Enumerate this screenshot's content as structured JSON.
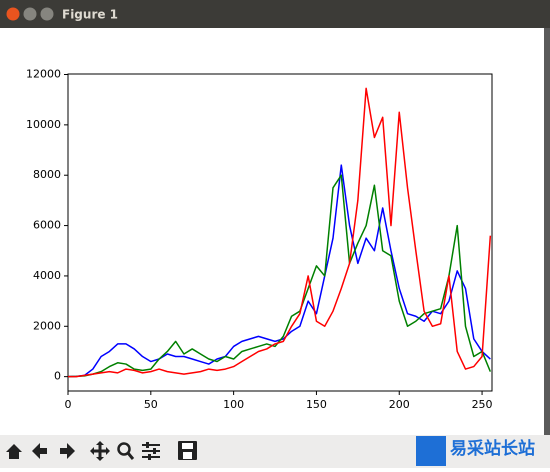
{
  "window": {
    "title": "Figure 1"
  },
  "chart_data": {
    "type": "line",
    "x": [
      0,
      5,
      10,
      15,
      20,
      25,
      30,
      35,
      40,
      45,
      50,
      55,
      60,
      65,
      70,
      75,
      80,
      85,
      90,
      95,
      100,
      105,
      110,
      115,
      120,
      125,
      130,
      135,
      140,
      145,
      150,
      155,
      160,
      165,
      170,
      175,
      180,
      185,
      190,
      195,
      200,
      205,
      210,
      215,
      220,
      225,
      230,
      235,
      240,
      245,
      250,
      255
    ],
    "series": [
      {
        "name": "b",
        "color": "#0000ff",
        "values": [
          0,
          10,
          50,
          300,
          800,
          1000,
          1300,
          1300,
          1100,
          800,
          600,
          700,
          900,
          800,
          800,
          700,
          600,
          500,
          700,
          800,
          1200,
          1400,
          1500,
          1600,
          1500,
          1400,
          1500,
          1800,
          2000,
          3000,
          2500,
          4000,
          5500,
          8400,
          6000,
          4500,
          5500,
          5000,
          6700,
          5000,
          3500,
          2500,
          2400,
          2200,
          2600,
          2500,
          3000,
          4200,
          3500,
          1500,
          1000,
          700
        ]
      },
      {
        "name": "g",
        "color": "#008000",
        "values": [
          0,
          10,
          30,
          100,
          200,
          400,
          550,
          500,
          300,
          250,
          300,
          700,
          1000,
          1400,
          900,
          1100,
          900,
          700,
          600,
          800,
          700,
          1000,
          1100,
          1200,
          1300,
          1200,
          1600,
          2400,
          2600,
          3500,
          4400,
          4000,
          7500,
          8000,
          4500,
          5300,
          6000,
          7600,
          5000,
          4800,
          3000,
          2000,
          2200,
          2500,
          2600,
          2700,
          4000,
          6000,
          2000,
          800,
          1000,
          200
        ]
      },
      {
        "name": "r",
        "color": "#ff0000",
        "values": [
          0,
          0,
          50,
          100,
          150,
          200,
          150,
          300,
          250,
          150,
          200,
          300,
          200,
          150,
          100,
          150,
          200,
          300,
          250,
          300,
          400,
          600,
          800,
          1000,
          1100,
          1300,
          1400,
          2000,
          2500,
          4000,
          2200,
          2000,
          2600,
          3500,
          4500,
          7000,
          11450,
          9500,
          10300,
          6000,
          10500,
          7500,
          5000,
          2600,
          2000,
          2100,
          4000,
          1000,
          300,
          400,
          800,
          5600
        ]
      }
    ],
    "xlim": [
      0,
      256
    ],
    "ylim": [
      -570,
      12020
    ],
    "xticks": [
      0,
      50,
      100,
      150,
      200,
      250
    ],
    "yticks": [
      0,
      2000,
      4000,
      6000,
      8000,
      10000,
      12000
    ]
  },
  "watermark": {
    "text": "易采站长站"
  }
}
